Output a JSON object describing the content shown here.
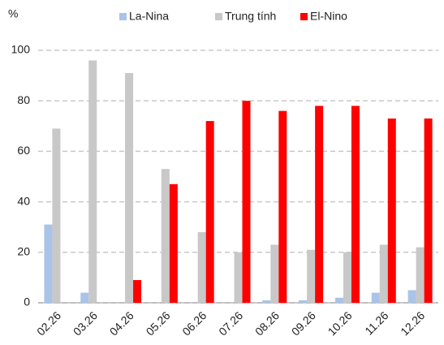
{
  "chart_data": {
    "type": "bar",
    "y_label": "%",
    "categories": [
      "02.26",
      "03.26",
      "04.26",
      "05.26",
      "06.26",
      "07.26",
      "08.26",
      "09.26",
      "10.26",
      "11.26",
      "12.26"
    ],
    "series": [
      {
        "name": "La-Nina",
        "color": "#a9c4e8",
        "values": [
          31,
          4,
          0,
          0,
          0,
          0,
          1,
          1,
          2,
          4,
          5
        ]
      },
      {
        "name": "Trung tính",
        "color": "#c8c8c8",
        "values": [
          69,
          96,
          91,
          53,
          28,
          20,
          23,
          21,
          20,
          23,
          22
        ]
      },
      {
        "name": "El-Nino",
        "color": "#ff0000",
        "values": [
          0,
          0,
          9,
          47,
          72,
          80,
          76,
          78,
          78,
          73,
          73
        ]
      }
    ],
    "ylim": [
      0,
      100
    ],
    "yticks": [
      0,
      20,
      40,
      60,
      80,
      100
    ],
    "grid": true,
    "legend": "top"
  }
}
